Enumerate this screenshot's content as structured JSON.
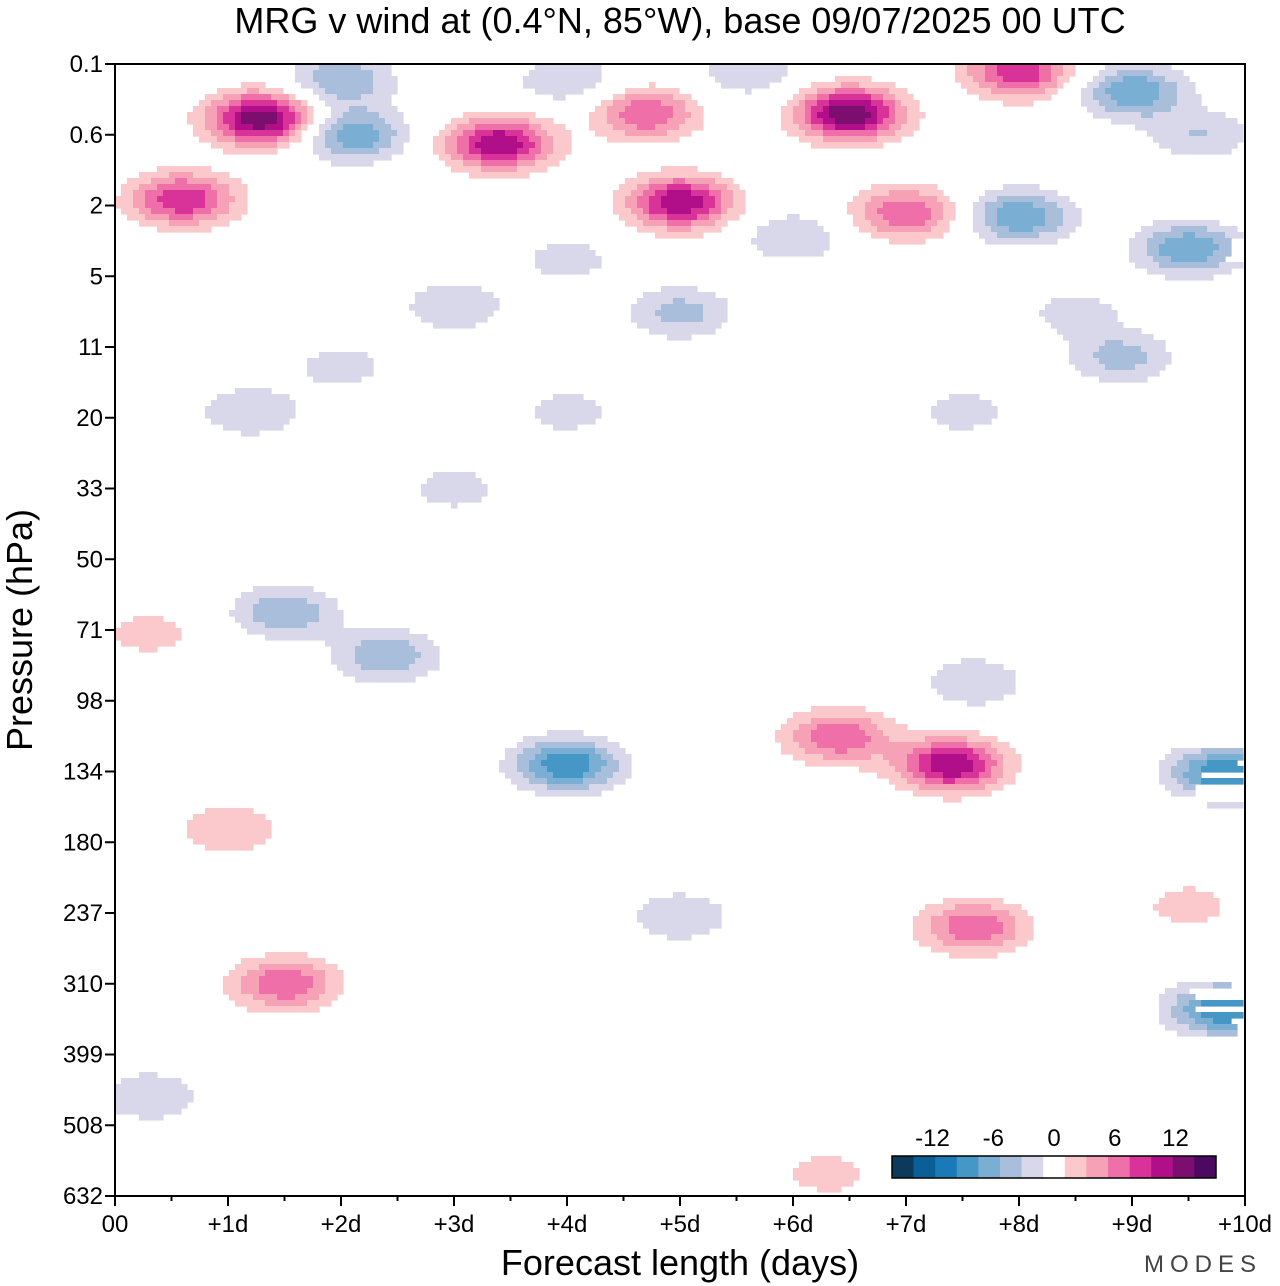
{
  "chart_data": {
    "type": "heatmap",
    "title": "MRG v wind at (0.4°N, 85°W),  base 09/07/2025  00 UTC",
    "xlabel": "Forecast length (days)",
    "ylabel": "Pressure (hPa)",
    "x_ticks": [
      "00",
      "+1d",
      "+2d",
      "+3d",
      "+4d",
      "+5d",
      "+6d",
      "+7d",
      "+8d",
      "+9d",
      "+10d"
    ],
    "y_ticks": [
      "0.1",
      "0.6",
      "2",
      "5",
      "11",
      "20",
      "33",
      "50",
      "71",
      "98",
      "134",
      "180",
      "237",
      "310",
      "399",
      "508",
      "632"
    ],
    "xlim": [
      0,
      10
    ],
    "ylim_hpa": [
      0.1,
      632
    ],
    "colorbar": {
      "tick_labels": [
        "-12",
        "-6",
        "0",
        "6",
        "12"
      ],
      "levels": [
        -14,
        -12,
        -10,
        -8,
        -6,
        -4,
        -2,
        2,
        4,
        6,
        8,
        10,
        12,
        14
      ],
      "colors": [
        "#0b3a5b",
        "#0c5f96",
        "#1a7ab8",
        "#4597c6",
        "#7aaed3",
        "#a9bedb",
        "#d8d8ea",
        "#ffffff",
        "#fbc9cb",
        "#f6a1b6",
        "#ef6fa8",
        "#d9339a",
        "#b10f89",
        "#7c0e6f",
        "#4d0861"
      ]
    },
    "features": [
      {
        "x": 1.3,
        "p": 0.4,
        "v": 14
      },
      {
        "x": 0.6,
        "p": 1.8,
        "v": 10
      },
      {
        "x": 2.0,
        "p": 0.15,
        "v": -6
      },
      {
        "x": 2.1,
        "p": 0.6,
        "v": -8
      },
      {
        "x": 3.4,
        "p": 0.7,
        "v": 12
      },
      {
        "x": 4.0,
        "p": 0.15,
        "v": -4
      },
      {
        "x": 4.7,
        "p": 0.35,
        "v": 8
      },
      {
        "x": 5.0,
        "p": 1.9,
        "v": 12
      },
      {
        "x": 5.6,
        "p": 0.12,
        "v": -4
      },
      {
        "x": 6.5,
        "p": 0.35,
        "v": 14
      },
      {
        "x": 7.0,
        "p": 2.2,
        "v": 8
      },
      {
        "x": 8.0,
        "p": 0.12,
        "v": 10
      },
      {
        "x": 8.0,
        "p": 2.3,
        "v": -8
      },
      {
        "x": 9.0,
        "p": 0.2,
        "v": -8
      },
      {
        "x": 9.5,
        "p": 3.5,
        "v": -8
      },
      {
        "x": 9.6,
        "p": 0.6,
        "v": -4
      },
      {
        "x": 6.0,
        "p": 3.0,
        "v": -4
      },
      {
        "x": 4.0,
        "p": 4.0,
        "v": -3
      },
      {
        "x": 3.0,
        "p": 7.0,
        "v": -4
      },
      {
        "x": 5.0,
        "p": 7.5,
        "v": -5
      },
      {
        "x": 8.5,
        "p": 7.5,
        "v": -3
      },
      {
        "x": 8.9,
        "p": 12,
        "v": -5
      },
      {
        "x": 2.0,
        "p": 13,
        "v": -3
      },
      {
        "x": 1.2,
        "p": 19,
        "v": -4
      },
      {
        "x": 4.0,
        "p": 19,
        "v": -3
      },
      {
        "x": 7.5,
        "p": 19,
        "v": -3
      },
      {
        "x": 3.0,
        "p": 33,
        "v": -3
      },
      {
        "x": 1.5,
        "p": 65,
        "v": -6
      },
      {
        "x": 2.4,
        "p": 80,
        "v": -6
      },
      {
        "x": 7.6,
        "p": 90,
        "v": -4
      },
      {
        "x": 4.0,
        "p": 130,
        "v": -10
      },
      {
        "x": 5.0,
        "p": 240,
        "v": -4
      },
      {
        "x": 7.4,
        "p": 130,
        "v": 12
      },
      {
        "x": 6.4,
        "p": 115,
        "v": 8
      },
      {
        "x": 7.6,
        "p": 250,
        "v": 8
      },
      {
        "x": 9.8,
        "p": 135,
        "v": -10
      },
      {
        "x": 9.8,
        "p": 340,
        "v": -10
      },
      {
        "x": 1.5,
        "p": 310,
        "v": 8
      },
      {
        "x": 1.0,
        "p": 170,
        "v": 4
      },
      {
        "x": 0.3,
        "p": 460,
        "v": -4
      },
      {
        "x": 6.3,
        "p": 590,
        "v": 3
      },
      {
        "x": 9.5,
        "p": 230,
        "v": 3
      },
      {
        "x": 0.3,
        "p": 72,
        "v": 3
      }
    ]
  },
  "brand": "MODES"
}
